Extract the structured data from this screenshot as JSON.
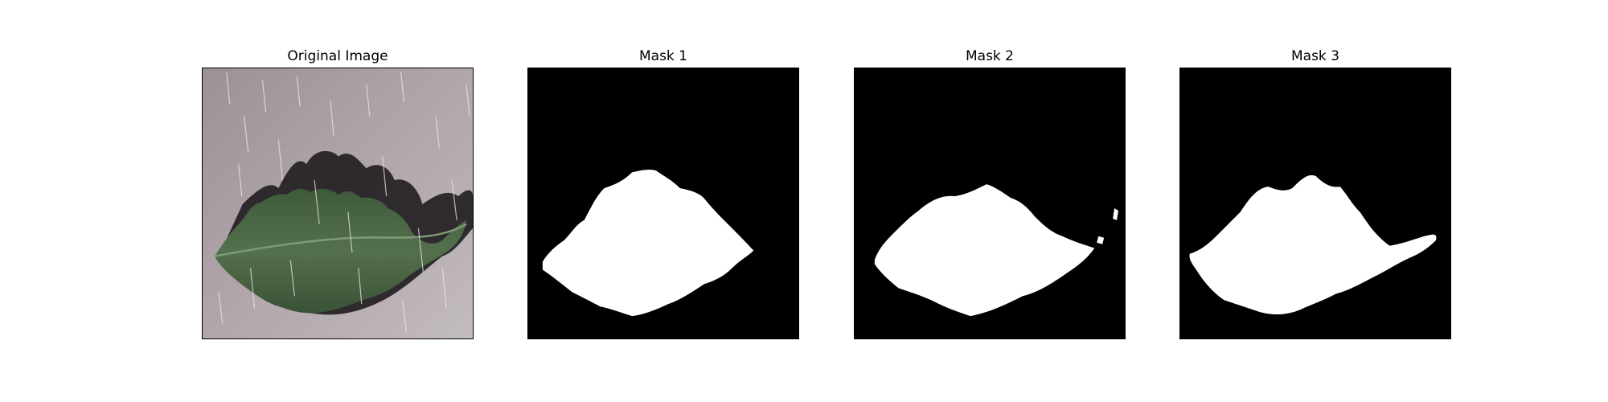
{
  "figure": {
    "panels": [
      {
        "title": "Original Image",
        "kind": "photo"
      },
      {
        "title": "Mask 1",
        "kind": "mask"
      },
      {
        "title": "Mask 2",
        "kind": "mask"
      },
      {
        "title": "Mask 3",
        "kind": "mask"
      }
    ]
  },
  "colors": {
    "mask_background": "#000000",
    "mask_foreground": "#ffffff",
    "photo_background": "#a89ea3",
    "leaf": "#46603f",
    "leaf_shadow": "#1c1a1c",
    "rain_streak": "#e8e4e8"
  }
}
